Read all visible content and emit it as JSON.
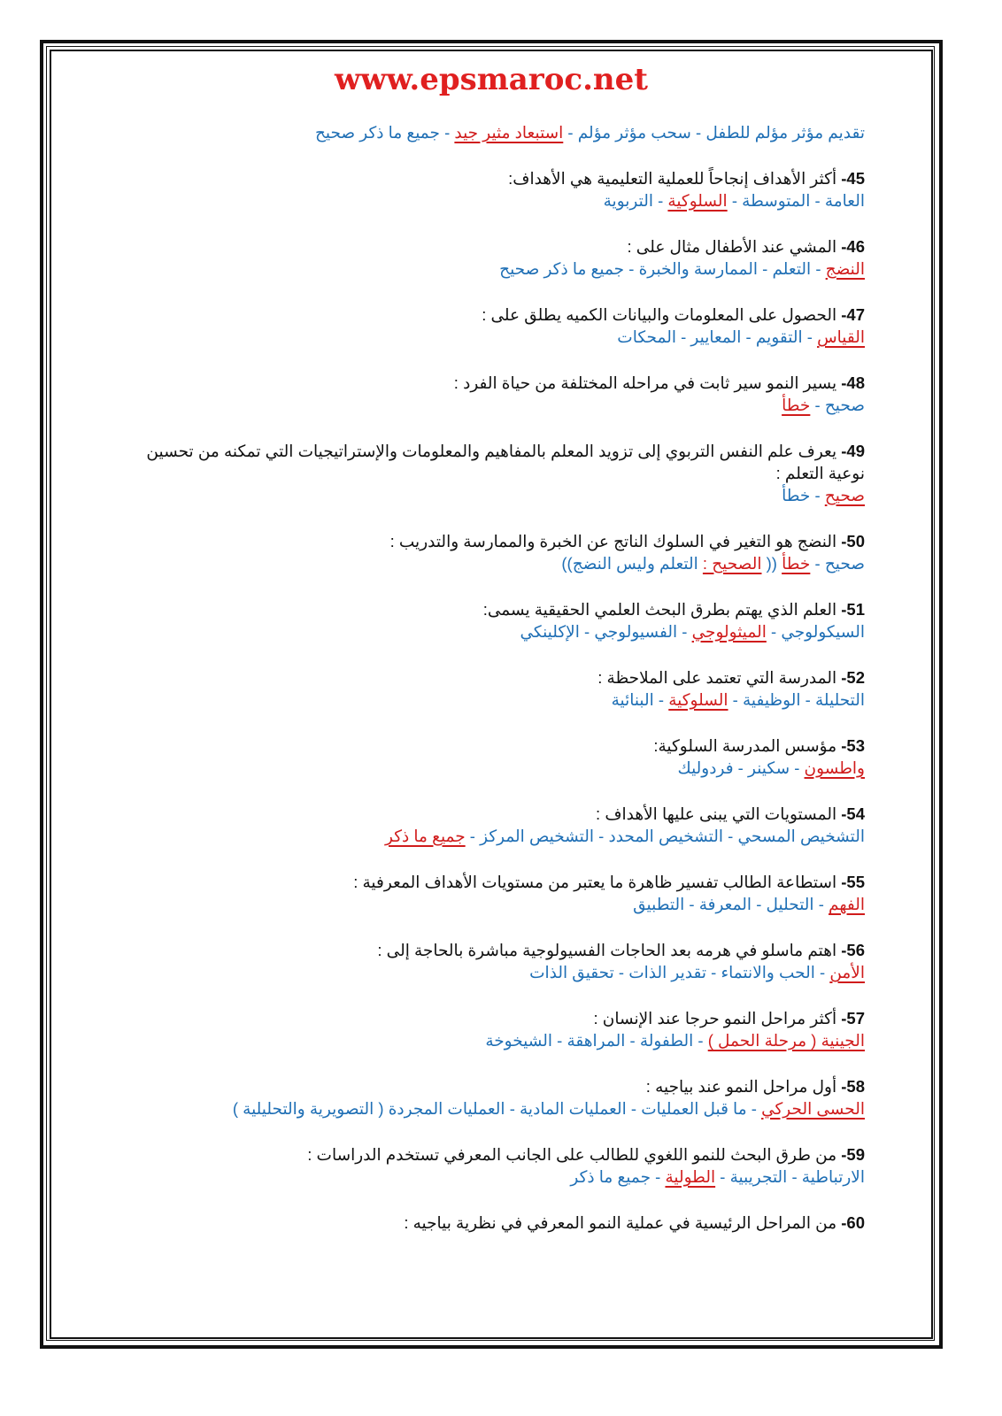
{
  "site_title": "www.epsmaroc.net",
  "colors": {
    "answer": "#1f6fb5",
    "correct": "#d01c1c",
    "title": "#e02020"
  },
  "lead_answers": [
    {
      "text": "تقديم مؤثر مؤلم للطفل",
      "correct": false
    },
    {
      "text": "سحب مؤثر مؤلم",
      "correct": false
    },
    {
      "text": "استبعاد مثير جيد",
      "correct": true
    },
    {
      "text": "جميع ما ذكر صحيح",
      "correct": false
    }
  ],
  "questions": [
    {
      "num": "45-",
      "text": "أكثر الأهداف إنجاحاً للعملية التعليمية هي الأهداف:",
      "answers": [
        {
          "text": "العامة",
          "correct": false
        },
        {
          "text": "المتوسطة",
          "correct": false
        },
        {
          "text": "السلوكية",
          "correct": true
        },
        {
          "text": "التربوية",
          "correct": false
        }
      ]
    },
    {
      "num": "46-",
      "text": "المشي عند الأطفال مثال على :",
      "answers": [
        {
          "text": "النضج",
          "correct": true
        },
        {
          "text": "التعلم",
          "correct": false
        },
        {
          "text": "الممارسة والخبرة",
          "correct": false
        },
        {
          "text": "جميع ما ذكر صحيح",
          "correct": false
        }
      ]
    },
    {
      "num": "47-",
      "text": "الحصول على المعلومات والبيانات الكميه يطلق على :",
      "answers": [
        {
          "text": "القياس",
          "correct": true
        },
        {
          "text": "التقويم",
          "correct": false
        },
        {
          "text": "المعايير",
          "correct": false
        },
        {
          "text": "المحكات",
          "correct": false
        }
      ]
    },
    {
      "num": "48-",
      "text": "يسير النمو سير ثابت في مراحله المختلفة من حياة الفرد :",
      "answers": [
        {
          "text": "صحيح",
          "correct": false
        },
        {
          "text": "خطأ",
          "correct": true
        }
      ]
    },
    {
      "num": "49-",
      "text": "يعرف علم النفس التربوي إلى تزويد المعلم بالمفاهيم والمعلومات والإستراتيجيات التي تمكنه من تحسين نوعية التعلم :",
      "answers": [
        {
          "text": "صحيح",
          "correct": true
        },
        {
          "text": "خطأ",
          "correct": false
        }
      ]
    },
    {
      "num": "50-",
      "text": "النضج هو التغير في السلوك الناتج عن الخبرة والممارسة والتدريب :",
      "answers": [
        {
          "text": "صحيح",
          "correct": false
        },
        {
          "text": "خطأ",
          "correct": true
        }
      ],
      "note": {
        "open": "((",
        "label": "الصحيح",
        "sep": ":",
        "text": "التعلم وليس النضج",
        "close": "))"
      }
    },
    {
      "num": "51-",
      "text": "العلم الذي يهتم بطرق البحث العلمي الحقيقية يسمى:",
      "answers": [
        {
          "text": "السيكولوجي",
          "correct": false
        },
        {
          "text": "الميثولوجي",
          "correct": true
        },
        {
          "text": "الفسيولوجي",
          "correct": false
        },
        {
          "text": "الإكلينكي",
          "correct": false
        }
      ]
    },
    {
      "num": "52-",
      "text": "المدرسة التي تعتمد على الملاحظة :",
      "answers": [
        {
          "text": "التحليلة",
          "correct": false
        },
        {
          "text": "الوظيفية",
          "correct": false
        },
        {
          "text": "السلوكية",
          "correct": true
        },
        {
          "text": "البنائية",
          "correct": false
        }
      ]
    },
    {
      "num": "53-",
      "text": "مؤسس المدرسة السلوكية:",
      "answers": [
        {
          "text": "واطسون",
          "correct": true
        },
        {
          "text": "سكينر",
          "correct": false
        },
        {
          "text": "فردوليك",
          "correct": false
        }
      ]
    },
    {
      "num": "54-",
      "text": "المستويات التي يبنى عليها الأهداف :",
      "answers": [
        {
          "text": "التشخيص المسحي",
          "correct": false
        },
        {
          "text": "التشخيص المحدد",
          "correct": false
        },
        {
          "text": "التشخيص المركز",
          "correct": false
        },
        {
          "text": "جميع ما ذكر",
          "correct": true
        }
      ]
    },
    {
      "num": "55-",
      "text": "استطاعة الطالب تفسير ظاهرة ما يعتبر من مستويات الأهداف المعرفية :",
      "answers": [
        {
          "text": "الفهم",
          "correct": true
        },
        {
          "text": "التحليل",
          "correct": false
        },
        {
          "text": "المعرفة",
          "correct": false
        },
        {
          "text": "التطبيق",
          "correct": false
        }
      ]
    },
    {
      "num": "56-",
      "text": "اهتم ماسلو في هرمه بعد الحاجات الفسيولوجية مباشرة بالحاجة إلى :",
      "answers": [
        {
          "text": "الأمن",
          "correct": true
        },
        {
          "text": "الحب والانتماء",
          "correct": false
        },
        {
          "text": "تقدير الذات",
          "correct": false
        },
        {
          "text": "تحقيق الذات",
          "correct": false
        }
      ]
    },
    {
      "num": "57-",
      "text": "أكثر مراحل النمو حرجا عند الإنسان :",
      "answers": [
        {
          "text": "الجينية ( مرحلة الحمل )",
          "correct": true
        },
        {
          "text": "الطفولة",
          "correct": false
        },
        {
          "text": "المراهقة",
          "correct": false
        },
        {
          "text": "الشيخوخة",
          "correct": false
        }
      ]
    },
    {
      "num": "58-",
      "text": "أول مراحل النمو عند بياجيه :",
      "answers": [
        {
          "text": "الحسى الحركي",
          "correct": true
        },
        {
          "text": "ما قبل العمليات",
          "correct": false
        },
        {
          "text": "العمليات المادية",
          "correct": false
        },
        {
          "text": "العمليات المجردة ( التصويرية والتحليلية )",
          "correct": false
        }
      ]
    },
    {
      "num": "59-",
      "text": "من طرق البحث للنمو اللغوي للطالب على الجانب المعرفي تستخدم الدراسات :",
      "answers": [
        {
          "text": "الارتباطية",
          "correct": false
        },
        {
          "text": "التجريبية",
          "correct": false
        },
        {
          "text": "الطولية",
          "correct": true
        },
        {
          "text": "جميع ما ذكر",
          "correct": false
        }
      ]
    },
    {
      "num": "60-",
      "text": "من المراحل الرئيسية في عملية النمو المعرفي في نظرية بياجيه :",
      "answers": []
    }
  ]
}
